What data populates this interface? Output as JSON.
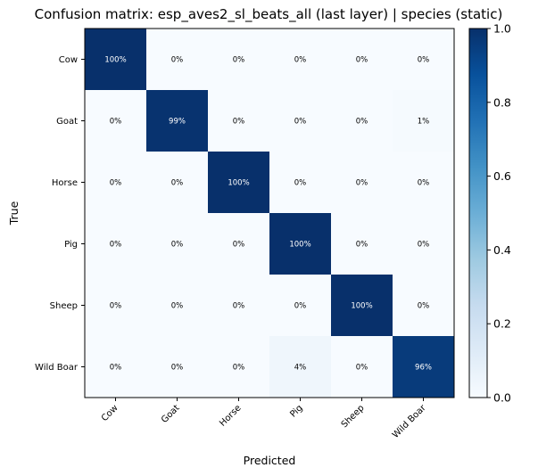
{
  "chart_data": {
    "type": "heatmap",
    "title": "Confusion matrix: esp_aves2_sl_beats_all (last layer) | species (static)",
    "xlabel": "Predicted",
    "ylabel": "True",
    "x_categories": [
      "Cow",
      "Goat",
      "Horse",
      "Pig",
      "Sheep",
      "Wild Boar"
    ],
    "y_categories": [
      "Cow",
      "Goat",
      "Horse",
      "Pig",
      "Sheep",
      "Wild Boar"
    ],
    "values": [
      [
        1.0,
        0.0,
        0.0,
        0.0,
        0.0,
        0.0
      ],
      [
        0.0,
        0.99,
        0.0,
        0.0,
        0.0,
        0.01
      ],
      [
        0.0,
        0.0,
        1.0,
        0.0,
        0.0,
        0.0
      ],
      [
        0.0,
        0.0,
        0.0,
        1.0,
        0.0,
        0.0
      ],
      [
        0.0,
        0.0,
        0.0,
        0.0,
        1.0,
        0.0
      ],
      [
        0.0,
        0.0,
        0.0,
        0.04,
        0.0,
        0.96
      ]
    ],
    "cell_labels": [
      [
        "100%",
        "0%",
        "0%",
        "0%",
        "0%",
        "0%"
      ],
      [
        "0%",
        "99%",
        "0%",
        "0%",
        "0%",
        "1%"
      ],
      [
        "0%",
        "0%",
        "100%",
        "0%",
        "0%",
        "0%"
      ],
      [
        "0%",
        "0%",
        "0%",
        "100%",
        "0%",
        "0%"
      ],
      [
        "0%",
        "0%",
        "0%",
        "0%",
        "100%",
        "0%"
      ],
      [
        "0%",
        "0%",
        "0%",
        "4%",
        "0%",
        "96%"
      ]
    ],
    "colorbar": {
      "range": [
        0,
        1
      ],
      "ticks": [
        "0.0",
        "0.2",
        "0.4",
        "0.6",
        "0.8",
        "1.0"
      ],
      "colormap": "Blues"
    },
    "grid": false
  }
}
